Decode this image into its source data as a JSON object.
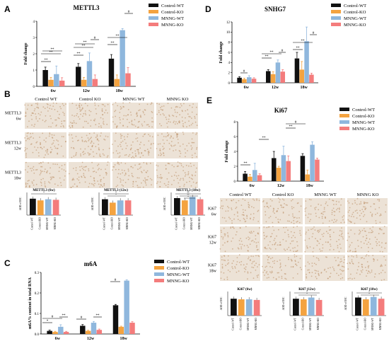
{
  "colors": {
    "Control-WT": "#111111",
    "Control-KO": "#f4a340",
    "MNNG-WT": "#8fb7dd",
    "MNNG-KO": "#f47c7c",
    "ihc_bg": "#ece2d6",
    "ihc_stain": "#b98c62"
  },
  "legend": [
    "Control-WT",
    "Control-KO",
    "MNNG-WT",
    "MNNG-KO"
  ],
  "panelA": {
    "letter": "A",
    "title": "METTL3",
    "ylabel": "Fold change",
    "yticks": [
      "0",
      "1",
      "2",
      "3",
      "4"
    ],
    "sig": [
      "**",
      "**",
      "**",
      "**",
      "**",
      "**",
      "#",
      "**",
      "**",
      "#"
    ]
  },
  "panelD": {
    "letter": "D",
    "title": "SNHG7",
    "ylabel": "Fold change",
    "yticks": [
      "0",
      "2",
      "4",
      "6",
      "8",
      "10",
      "12"
    ],
    "sig": [
      "#",
      "**",
      "**",
      "#",
      "**",
      "**",
      "#"
    ]
  },
  "panelC": {
    "letter": "C",
    "title": "m6A",
    "ylabel": "m6A% content in total RNA",
    "yticks": [
      "0.0",
      "0.1",
      "0.2",
      "0.3"
    ],
    "sig": [
      "*",
      "#",
      "**",
      "#",
      "**",
      "#"
    ]
  },
  "panelE": {
    "letter": "E",
    "title": "Ki67",
    "ylabel": "Fold change",
    "yticks": [
      "0",
      "2",
      "4",
      "6",
      "8"
    ],
    "sig": [
      "**",
      "**",
      "**",
      "#"
    ]
  },
  "panelB": {
    "letter": "B",
    "headers": [
      "Control WT",
      "Control KO",
      "MNNG WT",
      "MNNG KO"
    ],
    "rows": [
      [
        "METTL3",
        "6w"
      ],
      [
        "METTL3",
        "12w"
      ],
      [
        "METTL3",
        "18w"
      ]
    ],
    "minis": [
      {
        "title": "METTL3 (6w)",
        "ylabel": "AOD of IHC",
        "sig": [
          "*"
        ]
      },
      {
        "title": "METTL3 (12w)",
        "ylabel": "AOD of IHC",
        "sig": [
          "*",
          "*"
        ]
      },
      {
        "title": "METTL3 (18w)",
        "ylabel": "AOD of IHC",
        "sig": [
          "**",
          "**",
          "*"
        ]
      }
    ],
    "mini_xlabels": [
      "Control-WT",
      "Control-KO",
      "MNNG-WT",
      "MNNG-KO"
    ]
  },
  "panelE2": {
    "headers": [
      "Control WT",
      "Control KO",
      "MNNG WT",
      "MNNG KO"
    ],
    "rows": [
      [
        "Ki67",
        "6w"
      ],
      [
        "Ki67",
        "12w"
      ],
      [
        "Ki67",
        "18w"
      ]
    ],
    "minis": [
      {
        "title": "Ki67 (6w)",
        "ylabel": "AOD of IHC",
        "sig": []
      },
      {
        "title": "Ki67 (12w)",
        "ylabel": "AOD of IHC",
        "sig": [
          "*",
          "*"
        ]
      },
      {
        "title": "Ki67 (18w)",
        "ylabel": "AOD of IHC",
        "sig": [
          "*",
          "*"
        ]
      }
    ]
  },
  "chart_data": [
    {
      "type": "bar",
      "title": "METTL3",
      "ylabel": "Fold change",
      "ylim": [
        0,
        4
      ],
      "categories": [
        "6w",
        "12w",
        "18w"
      ],
      "series": [
        {
          "name": "Control-WT",
          "values": [
            1.0,
            1.2,
            1.7
          ]
        },
        {
          "name": "Control-KO",
          "values": [
            0.4,
            0.4,
            0.45
          ]
        },
        {
          "name": "MNNG-WT",
          "values": [
            0.75,
            1.55,
            3.45
          ]
        },
        {
          "name": "MNNG-KO",
          "values": [
            0.35,
            0.45,
            0.8
          ]
        }
      ],
      "errors": [
        [
          0.18,
          0.2,
          0.25
        ],
        [
          0.15,
          0.15,
          0.25
        ],
        [
          0.5,
          0.5,
          0.1
        ],
        [
          0.18,
          0.25,
          0.35
        ]
      ]
    },
    {
      "type": "bar",
      "title": "SNHG7",
      "ylabel": "Fold change",
      "ylim": [
        0,
        12
      ],
      "categories": [
        "6w",
        "12w",
        "18w"
      ],
      "series": [
        {
          "name": "Control-WT",
          "values": [
            1.0,
            2.3,
            4.8
          ]
        },
        {
          "name": "Control-KO",
          "values": [
            0.7,
            1.7,
            2.6
          ]
        },
        {
          "name": "MNNG-WT",
          "values": [
            1.1,
            4.0,
            8.2
          ]
        },
        {
          "name": "MNNG-KO",
          "values": [
            0.8,
            2.2,
            1.6
          ]
        }
      ],
      "errors": [
        [
          0.2,
          0.3,
          1.2
        ],
        [
          0.2,
          0.5,
          1.6
        ],
        [
          0.3,
          0.5,
          2.8
        ],
        [
          0.2,
          0.4,
          0.3
        ]
      ]
    },
    {
      "type": "bar",
      "title": "m6A",
      "ylabel": "m6A% content in total RNA",
      "ylim": [
        0,
        0.3
      ],
      "categories": [
        "6w",
        "12w",
        "18w"
      ],
      "series": [
        {
          "name": "Control-WT",
          "values": [
            0.015,
            0.04,
            0.14
          ]
        },
        {
          "name": "Control-KO",
          "values": [
            0.01,
            0.015,
            0.035
          ]
        },
        {
          "name": "MNNG-WT",
          "values": [
            0.035,
            0.055,
            0.26
          ]
        },
        {
          "name": "MNNG-KO",
          "values": [
            0.01,
            0.02,
            0.055
          ]
        }
      ],
      "errors": [
        [
          0.004,
          0.006,
          0.004
        ],
        [
          0.003,
          0.003,
          0.003
        ],
        [
          0.01,
          0.006,
          0.004
        ],
        [
          0.003,
          0.004,
          0.005
        ]
      ]
    },
    {
      "type": "bar",
      "title": "Ki67",
      "ylabel": "Fold change",
      "ylim": [
        0,
        8
      ],
      "categories": [
        "6w",
        "12w",
        "18w"
      ],
      "series": [
        {
          "name": "Control-WT",
          "values": [
            1.0,
            3.1,
            3.4
          ]
        },
        {
          "name": "Control-KO",
          "values": [
            0.6,
            1.8,
            0.9
          ]
        },
        {
          "name": "MNNG-WT",
          "values": [
            1.5,
            3.5,
            4.9
          ]
        },
        {
          "name": "MNNG-KO",
          "values": [
            0.8,
            2.7,
            2.9
          ]
        }
      ],
      "errors": [
        [
          0.3,
          0.9,
          0.3
        ],
        [
          0.3,
          0.2,
          0.6
        ],
        [
          0.9,
          1.2,
          0.4
        ],
        [
          0.2,
          0.7,
          0.2
        ]
      ]
    }
  ],
  "mini_values": {
    "mettl3": [
      [
        0.145,
        0.13,
        0.14,
        0.135
      ],
      [
        0.14,
        0.11,
        0.13,
        0.13
      ],
      [
        0.15,
        0.13,
        0.16,
        0.14
      ]
    ],
    "ki67": [
      [
        0.14,
        0.135,
        0.135,
        0.13
      ],
      [
        0.14,
        0.135,
        0.15,
        0.13
      ],
      [
        0.15,
        0.135,
        0.155,
        0.14
      ]
    ]
  }
}
